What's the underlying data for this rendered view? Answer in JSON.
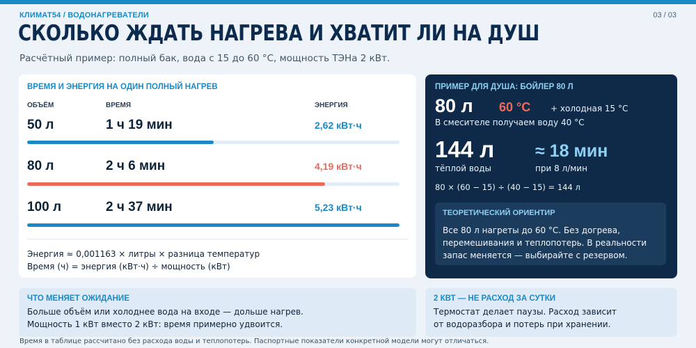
{
  "header": {
    "breadcrumb": "КЛИМАТ54 / ВОДОНАГРЕВАТЕЛИ",
    "pager": "03 / 03",
    "title": "СКОЛЬКО ЖДАТЬ НАГРЕВА И ХВАТИТ ЛИ НА ДУШ",
    "subtitle": "Расчётный пример: полный бак, вода с 15 до 60 °C, мощность ТЭНа 2 кВт."
  },
  "table": {
    "caption": "ВРЕМЯ И ЭНЕРГИЯ НА ОДИН ПОЛНЫЙ НАГРЕВ",
    "col_volume": "ОБЪЁМ",
    "col_time": "ВРЕМЯ",
    "col_energy": "ЭНЕРГИЯ",
    "rows": [
      {
        "volume": "50 л",
        "time": "1 ч 19 мин",
        "energy": "2,62 кВт·ч",
        "fraction": 0.5,
        "color": "#1a8ac6"
      },
      {
        "volume": "80 л",
        "time": "2 ч 6 мин",
        "energy": "4,19 кВт·ч",
        "fraction": 0.8,
        "color": "#ec6a5c"
      },
      {
        "volume": "100 л",
        "time": "2 ч 37 мин",
        "energy": "5,23 кВт·ч",
        "fraction": 1.0,
        "color": "#1a8ac6"
      }
    ],
    "formula_energy": "Энергия ≈ 0,001163 × литры × разница температур",
    "formula_time": "Время (ч) = энергия (кВт·ч) ÷ мощность (кВт)"
  },
  "shower": {
    "caption": "ПРИМЕР ДЛЯ ДУША: БОЙЛЕР 80 Л",
    "volume": "80 л",
    "temp": "60 °C",
    "cold": "+ холодная 15 °C",
    "mix": "В смесителе получаем воду 40 °C",
    "warm_amount": "144 л",
    "warm_label": "тёплой воды",
    "duration": "≈ 18 мин",
    "rate": "при 8 л/мин",
    "calc": "80 × (60 − 15) ÷ (40 − 15) = 144 л",
    "theory_caption": "ТЕОРЕТИЧЕСКИЙ ОРИЕНТИР",
    "theory_text": "Все 80 л нагреты до 60 °C. Без догрева, перемешивания и теплопотерь. В реальности запас меняется — выбирайте с резервом."
  },
  "note_wait": {
    "caption": "ЧТО МЕНЯЕТ ОЖИДАНИЕ",
    "line1": "Больше объём или холоднее вода на входе — дольше нагрев.",
    "line2": "Мощность 1 кВт вместо 2 кВт: время примерно удвоится."
  },
  "note_power": {
    "caption": "2 КВТ — НЕ РАСХОД ЗА СУТКИ",
    "line1": "Термостат делает паузы. Расход зависит",
    "line2": "от водоразбора и потерь при хранении."
  },
  "footnote": "Время в таблице рассчитано без расхода воды и теплопотерь. Паспортные показатели конкретной модели могут отличаться.",
  "colors": {
    "accent": "#1a8ac6",
    "warm": "#ec6a5c",
    "dark_card": "#0e2a48",
    "light_blue": "#8fd0f2"
  }
}
